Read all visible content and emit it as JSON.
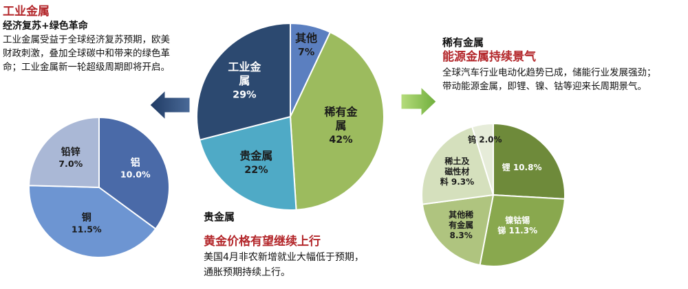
{
  "industrial_block": {
    "title": "工业金属",
    "subtitle": "经济复苏+绿色革命",
    "body_lines": [
      "工业金属受益于全球经济复苏预期，欧美",
      "财政刺激，叠加全球碳中和带来的绿色革",
      "命；工业金属新一轮超级周期即将开启。"
    ]
  },
  "rare_block": {
    "title": "稀有金属",
    "subtitle": "能源金属持续景气",
    "body_lines": [
      "全球汽车行业电动化趋势已成，储能行业发展强劲；",
      "带动能源金属，即锂、镍、钴等迎来长周期景气。"
    ]
  },
  "precious_block": {
    "title": "贵金属",
    "subtitle": "黄金价格有望继续上行",
    "body_lines": [
      "美国4月非农新增就业大幅低于预期，",
      "通胀预期持续上行。"
    ]
  },
  "chart_data": [
    {
      "type": "pie",
      "slices": [
        {
          "label_lines": [
            "其他"
          ],
          "value": 7,
          "value_label": "7%",
          "color": "#5b7fc0"
        },
        {
          "label_lines": [
            "稀有金",
            "属"
          ],
          "value": 42,
          "value_label": "42%",
          "color": "#9cbb5e"
        },
        {
          "label_lines": [
            "贵金属"
          ],
          "value": 22,
          "value_label": "22%",
          "color": "#4faac6"
        },
        {
          "label_lines": [
            "工业金",
            "属"
          ],
          "value": 29,
          "value_label": "29%",
          "color": "#2c4970"
        }
      ]
    },
    {
      "type": "pie",
      "slices": [
        {
          "label_lines": [
            "铝"
          ],
          "value": 10.0,
          "value_label": "10.0%",
          "color": "#4a6aa8"
        },
        {
          "label_lines": [
            "铜"
          ],
          "value": 11.5,
          "value_label": "11.5%",
          "color": "#6d95d2"
        },
        {
          "label_lines": [
            "铅锌"
          ],
          "value": 7.0,
          "value_label": "7.0%",
          "color": "#aab8d6"
        }
      ]
    },
    {
      "type": "pie",
      "slices": [
        {
          "label_lines": [
            "锂 10.8%"
          ],
          "value": 10.8,
          "color": "#6e8a3a"
        },
        {
          "label_lines": [
            "镍钴锡",
            "锑 11.3%"
          ],
          "value": 11.3,
          "color": "#89a84e"
        },
        {
          "label_lines": [
            "其他稀",
            "有金属",
            "8.3%"
          ],
          "value": 8.3,
          "color": "#afc47f"
        },
        {
          "label_lines": [
            "稀土及",
            "磁性材",
            "料 9.3%"
          ],
          "value": 9.3,
          "color": "#d5e0bd"
        },
        {
          "label_lines": [
            "钨 2.0%"
          ],
          "value": 2.0,
          "color": "#e6ecd9"
        }
      ]
    }
  ]
}
